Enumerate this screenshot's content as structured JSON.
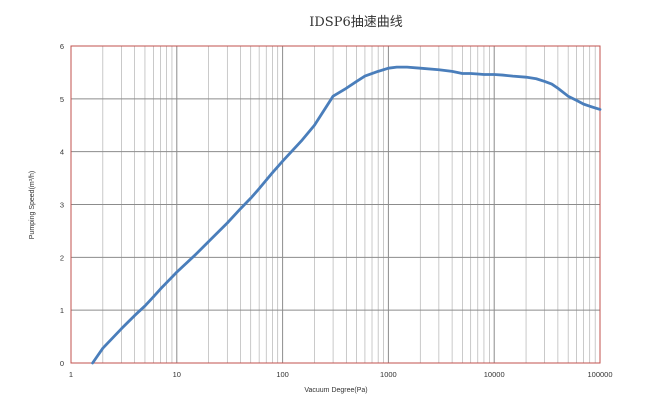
{
  "chart_data": {
    "type": "line",
    "title": "IDSP6抽速曲线",
    "xlabel": "Vacuum Degree(Pa)",
    "ylabel": "Pumping Speed(m³/h)",
    "xscale": "log",
    "xlim": [
      1,
      100000
    ],
    "ylim": [
      0,
      6
    ],
    "grid": true,
    "x_tick_labels": [
      "1",
      "10",
      "100",
      "1000",
      "10000",
      "100000"
    ],
    "y_tick_labels": [
      "0",
      "1",
      "2",
      "3",
      "4",
      "5",
      "6"
    ],
    "series": [
      {
        "x": [
          1.6,
          2,
          3,
          4,
          5,
          6,
          7,
          8,
          10,
          15,
          20,
          30,
          40,
          50,
          60,
          80,
          100,
          150,
          200,
          300,
          400,
          500,
          600,
          800,
          1000,
          1200,
          1500,
          2000,
          3000,
          4000,
          5000,
          6000,
          7000,
          8000,
          9000,
          10000,
          12000,
          15000,
          20000,
          25000,
          30000,
          35000,
          40000,
          50000,
          60000,
          70000,
          80000,
          100000
        ],
        "y": [
          0.0,
          0.28,
          0.65,
          0.9,
          1.08,
          1.25,
          1.4,
          1.52,
          1.72,
          2.05,
          2.3,
          2.65,
          2.92,
          3.12,
          3.3,
          3.6,
          3.82,
          4.2,
          4.5,
          5.05,
          5.2,
          5.33,
          5.43,
          5.52,
          5.58,
          5.6,
          5.6,
          5.58,
          5.55,
          5.52,
          5.48,
          5.48,
          5.47,
          5.46,
          5.46,
          5.46,
          5.45,
          5.43,
          5.41,
          5.38,
          5.33,
          5.28,
          5.2,
          5.05,
          4.97,
          4.9,
          4.86,
          4.8
        ],
        "color": "#4a7ebb"
      }
    ],
    "colors": {
      "plot_border": "#c0504d",
      "grid": "#8c8c8c",
      "series": "#4a7ebb"
    }
  }
}
